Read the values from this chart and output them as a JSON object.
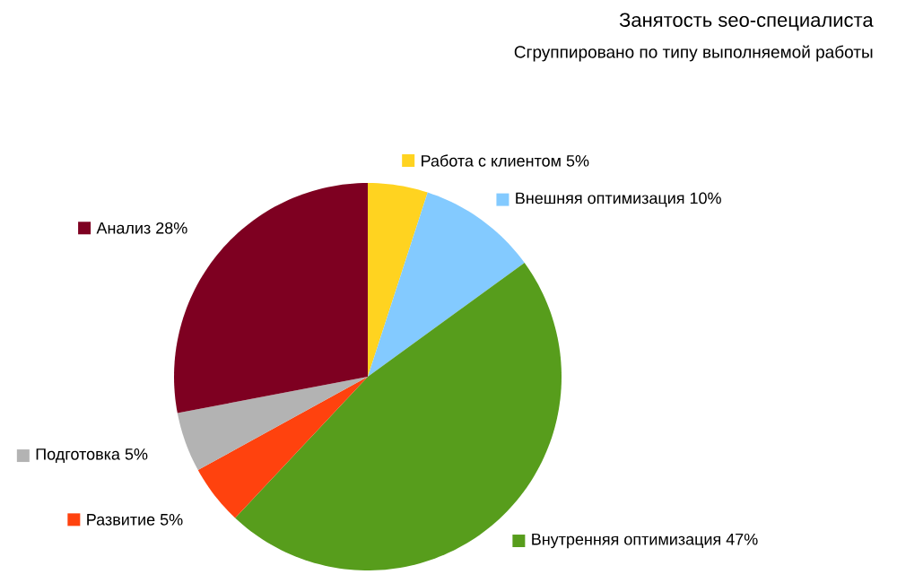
{
  "chart_data": {
    "type": "pie",
    "title": "Занятость seo-специалиста",
    "subtitle": "Сгруппировано по типу выполняемой работы",
    "categories": [
      "Работа с клиентом",
      "Внешняя оптимизация",
      "Внутренняя оптимизация",
      "Развитие",
      "Подготовка",
      "Анализ"
    ],
    "values": [
      5,
      10,
      47,
      5,
      5,
      28
    ],
    "legend": "left",
    "value_labels": [
      "5%",
      "10%",
      "47%",
      "5%",
      "5%",
      "28%"
    ],
    "colors": [
      "#ffd320",
      "#83caff",
      "#579d1c",
      "#ff420e",
      "#b3b3b3",
      "#7e0021"
    ]
  }
}
